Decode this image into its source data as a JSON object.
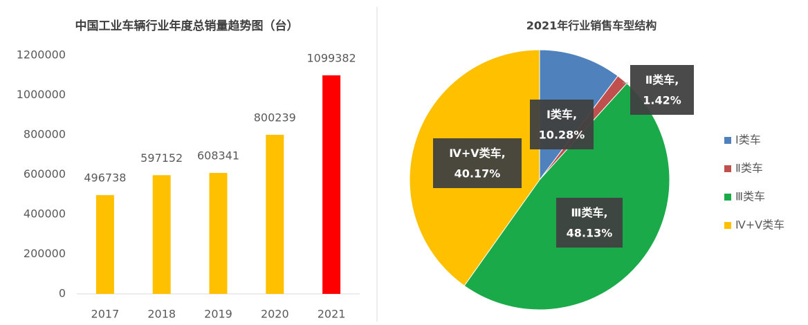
{
  "chart_data": [
    {
      "type": "bar",
      "title": "中国工业车辆行业年度总销量趋势图（台）",
      "categories": [
        "2017",
        "2018",
        "2019",
        "2020",
        "2021"
      ],
      "values": [
        496738,
        597152,
        608341,
        800239,
        1099382
      ],
      "colors": [
        "#ffc000",
        "#ffc000",
        "#ffc000",
        "#ffc000",
        "#ff0000"
      ],
      "ylim": [
        0,
        1200000
      ],
      "yticks": [
        0,
        200000,
        400000,
        600000,
        800000,
        1000000,
        1200000
      ],
      "grid": false
    },
    {
      "type": "pie",
      "title": "2021年行业销售车型结构",
      "categories": [
        "Ⅰ类车",
        "Ⅱ类车",
        "Ⅲ类车",
        "Ⅳ+Ⅴ类车"
      ],
      "values": [
        10.28,
        1.42,
        48.13,
        40.17
      ],
      "value_labels": [
        "10.28%",
        "1.42%",
        "48.13%",
        "40.17%"
      ],
      "data_label_separator": ",",
      "colors": [
        "#4f81bd",
        "#c0504d",
        "#1aaa4a",
        "#ffc000"
      ],
      "legend": "right"
    }
  ]
}
